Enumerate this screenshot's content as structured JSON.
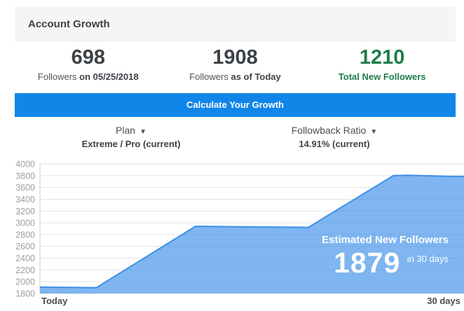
{
  "header": {
    "title": "Account Growth"
  },
  "stats": {
    "items": [
      {
        "value": "698",
        "label_regular": "Followers ",
        "label_bold": "on 05/25/2018"
      },
      {
        "value": "1908",
        "label_regular": "Followers ",
        "label_bold": "as of Today"
      },
      {
        "value": "1210",
        "label_regular": "",
        "label_bold": "Total New Followers"
      }
    ],
    "highlight_color": "#1d7d4a"
  },
  "cta": {
    "label": "Calculate Your Growth",
    "background": "#1186e8"
  },
  "filters": [
    {
      "label": "Plan",
      "value": "Extreme / Pro (current)"
    },
    {
      "label": "Followback Ratio",
      "value": "14.91% (current)"
    }
  ],
  "icons": {
    "caret_down": "▼"
  },
  "chart_data": {
    "type": "area",
    "title": "",
    "xlabel_left": "Today",
    "xlabel_right": "30 days",
    "x_days": [
      0,
      1,
      2,
      3,
      4,
      5,
      6,
      7,
      8,
      9,
      10,
      11,
      12,
      13,
      14,
      15,
      16,
      17,
      18,
      19,
      20,
      21,
      22,
      23,
      24,
      25,
      26,
      27,
      28,
      29,
      30
    ],
    "values": [
      1908,
      1906,
      1903,
      1901,
      1899,
      2048,
      2197,
      2345,
      2494,
      2643,
      2791,
      2940,
      2938,
      2936,
      2933,
      2931,
      2929,
      2927,
      2925,
      2923,
      3070,
      3216,
      3362,
      3508,
      3654,
      3800,
      3806,
      3800,
      3794,
      3790,
      3787
    ],
    "ylim": [
      1800,
      4000
    ],
    "y_ticks": [
      1800,
      2000,
      2200,
      2400,
      2600,
      2800,
      3000,
      3200,
      3400,
      3600,
      3800,
      4000
    ],
    "grid": true,
    "legend": "none",
    "colors": {
      "line": "#3d8fe8",
      "fill": "rgba(61,143,232,0.66)",
      "gridline": "#e3e3e3",
      "axis": "#cfcfcf",
      "tick_text": "#9aa0a6"
    },
    "annotation": {
      "title": "Estimated New Followers",
      "value": "1879",
      "suffix": "in 30 days"
    }
  }
}
